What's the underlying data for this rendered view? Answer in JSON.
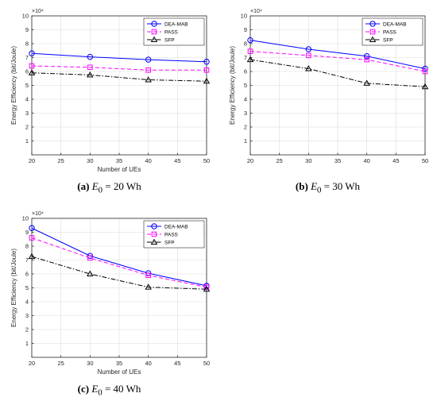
{
  "chart_data": [
    {
      "type": "line",
      "caption": {
        "letter": "(a)",
        "var": "E",
        "sub": "0",
        "rest": " = 20 Wh"
      },
      "xlabel": "Number of UEs",
      "ylabel": "Energy Efficiency (bit/Joule)",
      "exponent": "×10⁴",
      "x": [
        20,
        30,
        40,
        50
      ],
      "xlim": [
        20,
        50
      ],
      "ylim": [
        0,
        10
      ],
      "xticks": [
        20,
        25,
        30,
        35,
        40,
        45,
        50
      ],
      "yticks": [
        1,
        2,
        3,
        4,
        5,
        6,
        7,
        8,
        9,
        10
      ],
      "legend_position": "top-right",
      "grid": true,
      "series": [
        {
          "name": "DEA-MAB",
          "values": [
            7.3,
            7.05,
            6.85,
            6.7
          ],
          "color": "#0000ff",
          "marker": "circle",
          "dash": "solid"
        },
        {
          "name": "PASS",
          "values": [
            6.4,
            6.3,
            6.1,
            6.1
          ],
          "color": "#ff00ff",
          "marker": "square",
          "dash": "dashed"
        },
        {
          "name": "SFP",
          "values": [
            5.9,
            5.75,
            5.4,
            5.3
          ],
          "color": "#000000",
          "marker": "triangle",
          "dash": "dashdot"
        }
      ]
    },
    {
      "type": "line",
      "caption": {
        "letter": "(b)",
        "var": "E",
        "sub": "0",
        "rest": " = 30 Wh"
      },
      "xlabel": "",
      "ylabel": "Energy Efficiency (bit/Joule)",
      "exponent": "×10⁴",
      "x": [
        20,
        30,
        40,
        50
      ],
      "xlim": [
        20,
        50
      ],
      "ylim": [
        0,
        10
      ],
      "xticks": [
        20,
        25,
        30,
        35,
        40,
        45,
        50
      ],
      "yticks": [
        1,
        2,
        3,
        4,
        5,
        6,
        7,
        8,
        9,
        10
      ],
      "legend_position": "top-right",
      "grid": true,
      "series": [
        {
          "name": "DEA-MAB",
          "values": [
            8.25,
            7.6,
            7.1,
            6.2
          ],
          "color": "#0000ff",
          "marker": "circle",
          "dash": "solid"
        },
        {
          "name": "PASS",
          "values": [
            7.45,
            7.15,
            6.85,
            6.0
          ],
          "color": "#ff00ff",
          "marker": "square",
          "dash": "dashed"
        },
        {
          "name": "SFP",
          "values": [
            6.85,
            6.2,
            5.15,
            4.9
          ],
          "color": "#000000",
          "marker": "triangle",
          "dash": "dashdot"
        }
      ]
    },
    {
      "type": "line",
      "caption": {
        "letter": "(c)",
        "var": "E",
        "sub": "0",
        "rest": " = 40 Wh"
      },
      "xlabel": "Number of UEs",
      "ylabel": "Energy Efficiency (bit/Joule)",
      "exponent": "×10⁴",
      "x": [
        20,
        30,
        40,
        50
      ],
      "xlim": [
        20,
        50
      ],
      "ylim": [
        0,
        10
      ],
      "xticks": [
        20,
        25,
        30,
        35,
        40,
        45,
        50
      ],
      "yticks": [
        1,
        2,
        3,
        4,
        5,
        6,
        7,
        8,
        9,
        10
      ],
      "legend_position": "top-right",
      "grid": true,
      "series": [
        {
          "name": "DEA-MAB",
          "values": [
            9.3,
            7.3,
            6.05,
            5.15
          ],
          "color": "#0000ff",
          "marker": "circle",
          "dash": "solid"
        },
        {
          "name": "PASS",
          "values": [
            8.6,
            7.15,
            5.9,
            5.05
          ],
          "color": "#ff00ff",
          "marker": "square",
          "dash": "dashed"
        },
        {
          "name": "SFP",
          "values": [
            7.25,
            6.0,
            5.05,
            4.9
          ],
          "color": "#000000",
          "marker": "triangle",
          "dash": "dashdot"
        }
      ]
    }
  ]
}
